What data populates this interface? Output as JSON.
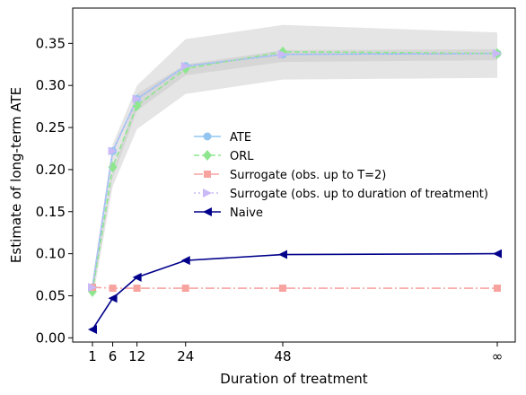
{
  "chart_data": {
    "type": "line",
    "xlabel": "Duration of treatment",
    "ylabel": "Estimate of long-term ATE",
    "x_positions": [
      1,
      6,
      12,
      24,
      48,
      100
    ],
    "x_tick_labels": [
      "1",
      "6",
      "12",
      "24",
      "48",
      "∞"
    ],
    "ylim": [
      -0.005,
      0.392
    ],
    "y_ticks": [
      0.0,
      0.05,
      0.1,
      0.15,
      0.2,
      0.25,
      0.3,
      0.35
    ],
    "y_tick_labels": [
      "0.00",
      "0.05",
      "0.10",
      "0.15",
      "0.20",
      "0.25",
      "0.30",
      "0.35"
    ],
    "grid": false,
    "legend_position": "center-right",
    "bands": [
      {
        "upper": [
          0.06,
          0.195,
          0.29,
          0.325,
          0.342,
          0.343
        ],
        "lower": [
          0.052,
          0.19,
          0.27,
          0.312,
          0.328,
          0.33
        ],
        "color": "#c8c8c8",
        "opacity": 0.6
      },
      {
        "upper": [
          0.068,
          0.23,
          0.3,
          0.355,
          0.372,
          0.363
        ],
        "lower": [
          0.045,
          0.18,
          0.248,
          0.29,
          0.307,
          0.309
        ],
        "color": "#cfcfcf",
        "opacity": 0.55
      }
    ],
    "series": [
      {
        "name": "ATE",
        "values": [
          0.06,
          0.222,
          0.284,
          0.323,
          0.337,
          0.338
        ],
        "color": "#92c5f0",
        "dash": "",
        "marker": "circle"
      },
      {
        "name": "ORL",
        "values": [
          0.055,
          0.203,
          0.276,
          0.32,
          0.34,
          0.338
        ],
        "color": "#8ee68e",
        "dash": "6,3",
        "marker": "diamond"
      },
      {
        "name": "Surrogate (obs. up to T=2)",
        "values": [
          0.06,
          0.059,
          0.059,
          0.059,
          0.059,
          0.059
        ],
        "color": "#f7a3a0",
        "dash": "10,3,2,3",
        "marker": "square"
      },
      {
        "name": "Surrogate (obs. up to duration of treatment)",
        "values": [
          0.06,
          0.222,
          0.284,
          0.323,
          0.337,
          0.338
        ],
        "color": "#c9b9f7",
        "dash": "2,3",
        "marker": "triangle-right"
      },
      {
        "name": "Naive",
        "values": [
          0.01,
          0.047,
          0.072,
          0.092,
          0.099,
          0.1
        ],
        "color": "#00008b",
        "dash": "",
        "marker": "triangle-left"
      }
    ]
  }
}
